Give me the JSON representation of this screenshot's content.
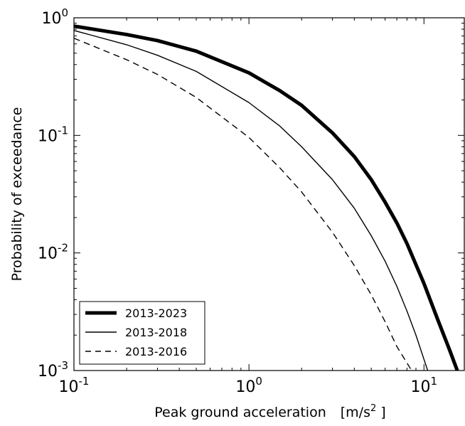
{
  "chart_data": {
    "type": "line",
    "xscale": "log",
    "yscale": "log",
    "xlim": [
      0.1,
      17
    ],
    "ylim": [
      0.001,
      1
    ],
    "xlabel": "Peak ground acceleration",
    "xlabel_unit": "[m/s",
    "xlabel_unit_sup": "2",
    "xlabel_unit_end": " ]",
    "ylabel": "Probability of exceedance",
    "x_ticks": [
      {
        "base": "10",
        "exp": "-1",
        "value": 0.1
      },
      {
        "base": "10",
        "exp": "0",
        "value": 1
      },
      {
        "base": "10",
        "exp": "1",
        "value": 10
      }
    ],
    "y_ticks": [
      {
        "base": "10",
        "exp": "0",
        "value": 1
      },
      {
        "base": "10",
        "exp": "-1",
        "value": 0.1
      },
      {
        "base": "10",
        "exp": "-2",
        "value": 0.01
      },
      {
        "base": "10",
        "exp": "-3",
        "value": 0.001
      }
    ],
    "grid": false,
    "legend_position": "bottom-left",
    "series": [
      {
        "name": "2013-2023",
        "style": "thick-solid",
        "color": "#000000",
        "x": [
          0.1,
          0.2,
          0.3,
          0.5,
          1.0,
          1.5,
          2.0,
          3.0,
          4.0,
          5.0,
          6.0,
          7.0,
          8.0,
          10.0,
          12.0,
          14.0,
          15.5
        ],
        "y": [
          0.85,
          0.72,
          0.64,
          0.52,
          0.34,
          0.24,
          0.18,
          0.105,
          0.066,
          0.042,
          0.027,
          0.018,
          0.012,
          0.0055,
          0.0027,
          0.0015,
          0.001
        ]
      },
      {
        "name": "2013-2018",
        "style": "thin-solid",
        "color": "#000000",
        "x": [
          0.1,
          0.2,
          0.3,
          0.5,
          1.0,
          1.5,
          2.0,
          3.0,
          4.0,
          5.0,
          6.0,
          7.0,
          8.0,
          9.0,
          10.5
        ],
        "y": [
          0.78,
          0.59,
          0.48,
          0.35,
          0.19,
          0.12,
          0.08,
          0.042,
          0.024,
          0.014,
          0.0085,
          0.0052,
          0.0032,
          0.002,
          0.001
        ]
      },
      {
        "name": "2013-2016",
        "style": "dashed",
        "color": "#000000",
        "x": [
          0.1,
          0.2,
          0.3,
          0.5,
          1.0,
          1.5,
          2.0,
          3.0,
          4.0,
          5.0,
          6.0,
          7.0,
          8.5
        ],
        "y": [
          0.67,
          0.44,
          0.33,
          0.21,
          0.096,
          0.053,
          0.033,
          0.015,
          0.0078,
          0.0044,
          0.0026,
          0.0016,
          0.001
        ]
      }
    ]
  }
}
